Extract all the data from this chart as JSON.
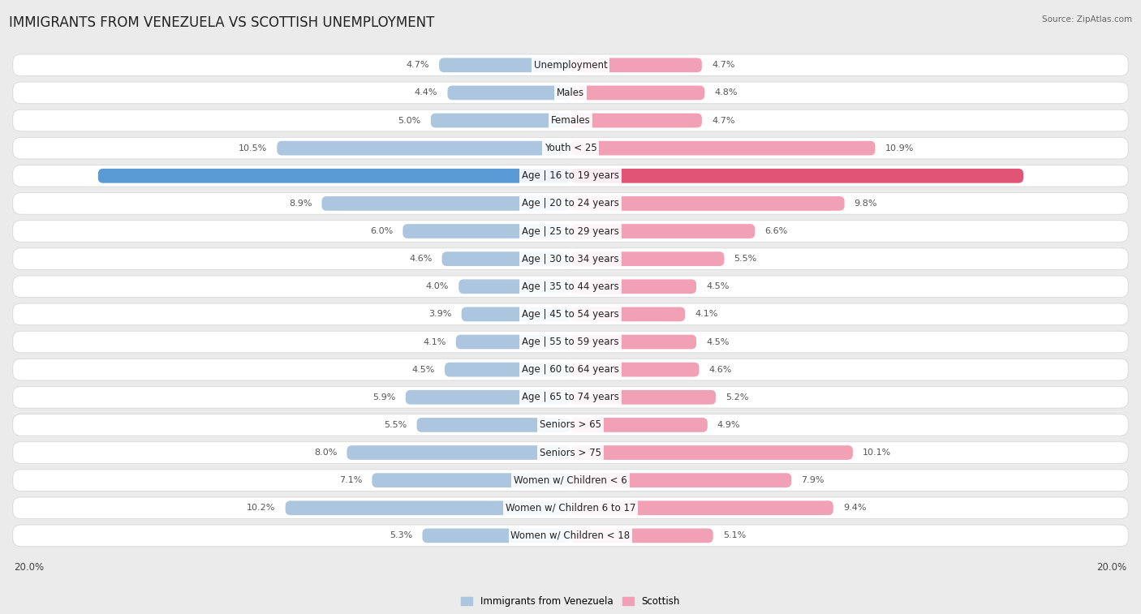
{
  "title": "IMMIGRANTS FROM VENEZUELA VS SCOTTISH UNEMPLOYMENT",
  "source": "Source: ZipAtlas.com",
  "categories": [
    "Unemployment",
    "Males",
    "Females",
    "Youth < 25",
    "Age | 16 to 19 years",
    "Age | 20 to 24 years",
    "Age | 25 to 29 years",
    "Age | 30 to 34 years",
    "Age | 35 to 44 years",
    "Age | 45 to 54 years",
    "Age | 55 to 59 years",
    "Age | 60 to 64 years",
    "Age | 65 to 74 years",
    "Seniors > 65",
    "Seniors > 75",
    "Women w/ Children < 6",
    "Women w/ Children 6 to 17",
    "Women w/ Children < 18"
  ],
  "left_values": [
    4.7,
    4.4,
    5.0,
    10.5,
    16.9,
    8.9,
    6.0,
    4.6,
    4.0,
    3.9,
    4.1,
    4.5,
    5.9,
    5.5,
    8.0,
    7.1,
    10.2,
    5.3
  ],
  "right_values": [
    4.7,
    4.8,
    4.7,
    10.9,
    16.2,
    9.8,
    6.6,
    5.5,
    4.5,
    4.1,
    4.5,
    4.6,
    5.2,
    4.9,
    10.1,
    7.9,
    9.4,
    5.1
  ],
  "left_color": "#adc6e0",
  "right_color": "#f2a0b5",
  "left_label": "Immigrants from Venezuela",
  "right_label": "Scottish",
  "title_fontsize": 12,
  "label_fontsize": 8.5,
  "value_fontsize": 8.0,
  "axis_max": 20.0,
  "bg_color": "#ebebeb",
  "bar_bg_color": "#ffffff",
  "row_bg_edge_color": "#d8d8d8",
  "highlight_left_color": "#5b9bd5",
  "highlight_right_color": "#e05575",
  "highlight_index": 4,
  "normal_value_color": "#555555",
  "highlight_value_color_left": "#ffffff",
  "highlight_value_color_right": "#ffffff"
}
